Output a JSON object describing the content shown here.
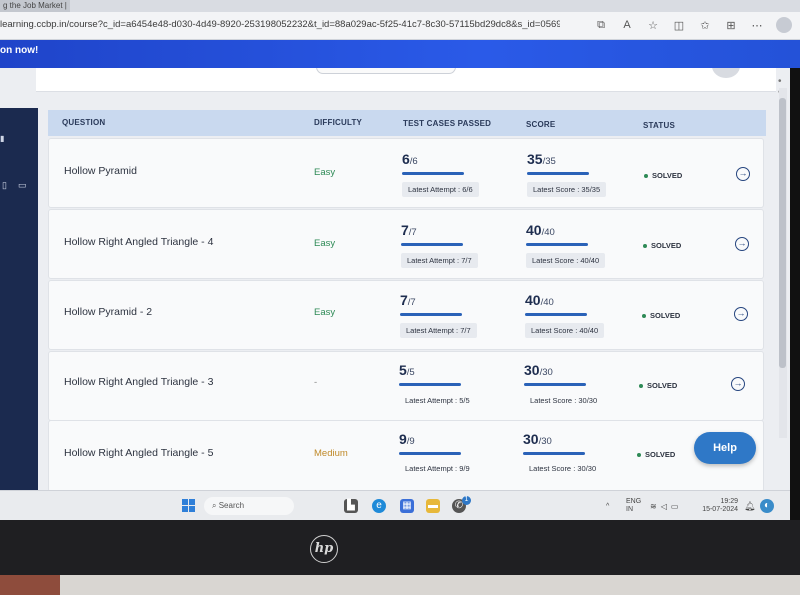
{
  "browser": {
    "tab_fragment": "g the Job Market |",
    "url_main": "learning.ccbp.in/course?c_id=a6454e48-d030-4d49-8920-253198052232&t_id=88a029ac-5f25-41c7-8c30-57115bd29dc8&s_id=056931a5-cd63-...",
    "icons": [
      "translate-icon",
      "read-aloud-icon",
      "favorite-star-icon",
      "split-screen-icon",
      "favorites-icon",
      "collections-icon",
      "extensions-icon"
    ]
  },
  "banner": {
    "text": "on now!"
  },
  "table": {
    "headers": {
      "question": "QUESTION",
      "difficulty": "DIFFICULTY",
      "test_cases": "TEST CASES PASSED",
      "score": "SCORE",
      "status": "STATUS"
    },
    "rows": [
      {
        "title": "Hollow Pyramid",
        "difficulty": "Easy",
        "tests_passed": "6",
        "tests_total": "/6",
        "attempt_label": "Latest Attempt : 6/6",
        "score": "35",
        "score_total": "/35",
        "score_label": "Latest Score : 35/35",
        "status": "SOLVED"
      },
      {
        "title": "Hollow Right Angled Triangle - 4",
        "difficulty": "Easy",
        "tests_passed": "7",
        "tests_total": "/7",
        "attempt_label": "Latest Attempt : 7/7",
        "score": "40",
        "score_total": "/40",
        "score_label": "Latest Score : 40/40",
        "status": "SOLVED"
      },
      {
        "title": "Hollow Pyramid - 2",
        "difficulty": "Easy",
        "tests_passed": "7",
        "tests_total": "/7",
        "attempt_label": "Latest Attempt : 7/7",
        "score": "40",
        "score_total": "/40",
        "score_label": "Latest Score : 40/40",
        "status": "SOLVED"
      },
      {
        "title": "Hollow Right Angled Triangle - 3",
        "difficulty": "-",
        "tests_passed": "5",
        "tests_total": "/5",
        "attempt_label": "Latest Attempt : 5/5",
        "score": "30",
        "score_total": "/30",
        "score_label": "Latest Score : 30/30",
        "status": "SOLVED"
      },
      {
        "title": "Hollow Right Angled Triangle - 5",
        "difficulty": "Medium",
        "tests_passed": "9",
        "tests_total": "/9",
        "attempt_label": "Latest Attempt : 9/9",
        "score": "30",
        "score_total": "/30",
        "score_label": "Latest Score : 30/30",
        "status": "SOLVED"
      }
    ]
  },
  "help_button": "Help",
  "taskbar": {
    "search_placeholder": "Search",
    "language_top": "ENG",
    "language_bottom": "IN",
    "time": "19:29",
    "date": "15-07-2024",
    "whatsapp_badge": "1"
  },
  "brand_logo": "hp",
  "colors": {
    "banner": "#2452d8",
    "table_header": "#c9d9ef",
    "progress_bar": "#2a62b8",
    "easy": "#2e8a56",
    "medium": "#c08a2a",
    "help": "#2f78c7"
  }
}
